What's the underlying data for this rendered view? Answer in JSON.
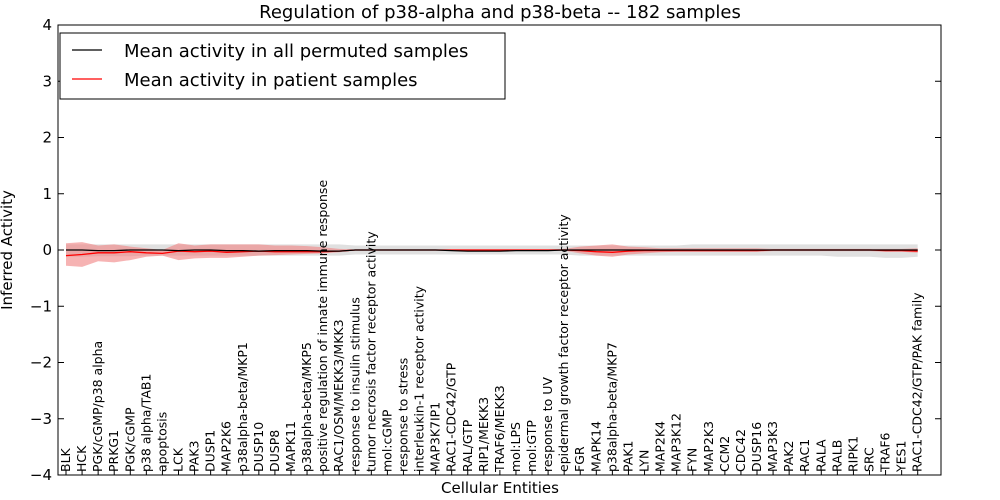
{
  "chart_data": {
    "type": "line",
    "title": "Regulation of p38-alpha and p38-beta -- 182 samples",
    "xlabel": "Cellular Entities",
    "ylabel": "Inferred Activity",
    "ylim": [
      -4,
      4
    ],
    "yticks": [
      4,
      3,
      2,
      1,
      0,
      -1,
      -2,
      -3,
      -4
    ],
    "ytick_labels": [
      "4",
      "3",
      "2",
      "1",
      "0",
      "−1",
      "−2",
      "−3",
      "−4"
    ],
    "legend_placement": "top-left",
    "categories": [
      "BLK",
      "HCK",
      "PGK/cGMP/p38 alpha",
      "PRKG1",
      "PGK/cGMP",
      "p38 alpha/TAB1",
      "apoptosis",
      "LCK",
      "PAK3",
      "DUSP1",
      "MAP2K6",
      "p38alpha-beta/MKP1",
      "DUSP10",
      "DUSP8",
      "MAPK11",
      "p38alpha-beta/MKP5",
      "positive regulation of innate immune response",
      "RAC1/OSM/MEKK3/MKK3",
      "response to insulin stimulus",
      "tumor necrosis factor receptor activity",
      "mol:cGMP",
      "response to stress",
      "interleukin-1 receptor activity",
      "MAP3K7IP1",
      "RAC1-CDC42/GTP",
      "RAL/GTP",
      "RIP1/MEKK3",
      "TRAF6/MEKK3",
      "mol:LPS",
      "mol:GTP",
      "response to UV",
      "epidermal growth factor receptor activity",
      "FGR",
      "MAPK14",
      "p38alpha-beta/MKP7",
      "PAK1",
      "LYN",
      "MAP2K4",
      "MAP3K12",
      "FYN",
      "MAP2K3",
      "CCM2",
      "CDC42",
      "DUSP16",
      "MAP3K3",
      "PAK2",
      "RAC1",
      "RALA",
      "RALB",
      "RIPK1",
      "SRC",
      "TRAF6",
      "YES1",
      "RAC1-CDC42/GTP/PAK family"
    ],
    "series": [
      {
        "name": "Mean activity in all permuted samples",
        "color": "#000000",
        "band_color": "#cccccc",
        "values": [
          0.0,
          0.0,
          -0.01,
          -0.01,
          0.0,
          0.0,
          0.0,
          -0.01,
          0.0,
          0.0,
          -0.01,
          -0.01,
          -0.02,
          -0.01,
          -0.01,
          -0.01,
          -0.02,
          -0.02,
          0.0,
          0.0,
          0.0,
          0.0,
          0.0,
          0.0,
          -0.01,
          -0.02,
          -0.02,
          -0.02,
          -0.01,
          -0.01,
          -0.01,
          0.0,
          0.0,
          0.0,
          0.0,
          0.0,
          0.0,
          0.0,
          0.0,
          0.0,
          0.0,
          0.0,
          0.0,
          0.0,
          0.0,
          0.0,
          0.0,
          0.0,
          0.0,
          0.0,
          0.0,
          0.0,
          0.0,
          0.0
        ],
        "lower": [
          -0.12,
          -0.12,
          -0.11,
          -0.11,
          -0.11,
          -0.1,
          -0.1,
          -0.1,
          -0.1,
          -0.1,
          -0.1,
          -0.1,
          -0.1,
          -0.1,
          -0.1,
          -0.1,
          -0.1,
          -0.1,
          -0.08,
          -0.08,
          -0.08,
          -0.08,
          -0.08,
          -0.08,
          -0.08,
          -0.08,
          -0.08,
          -0.08,
          -0.08,
          -0.08,
          -0.08,
          -0.08,
          -0.1,
          -0.1,
          -0.1,
          -0.1,
          -0.1,
          -0.1,
          -0.1,
          -0.1,
          -0.1,
          -0.1,
          -0.1,
          -0.1,
          -0.1,
          -0.1,
          -0.1,
          -0.1,
          -0.12,
          -0.12,
          -0.12,
          -0.14,
          -0.14,
          -0.12
        ],
        "upper": [
          0.1,
          0.1,
          0.1,
          0.1,
          0.1,
          0.1,
          0.1,
          0.1,
          0.1,
          0.1,
          0.1,
          0.1,
          0.1,
          0.1,
          0.1,
          0.1,
          0.1,
          0.1,
          0.08,
          0.08,
          0.08,
          0.08,
          0.08,
          0.08,
          0.08,
          0.08,
          0.08,
          0.08,
          0.08,
          0.08,
          0.08,
          0.08,
          0.08,
          0.08,
          0.08,
          0.08,
          0.08,
          0.08,
          0.08,
          0.1,
          0.1,
          0.1,
          0.1,
          0.1,
          0.1,
          0.1,
          0.1,
          0.1,
          0.1,
          0.1,
          0.1,
          0.1,
          0.1,
          0.1
        ]
      },
      {
        "name": "Mean activity in patient samples",
        "color": "#ff0000",
        "band_color": "#f08080",
        "values": [
          -0.1,
          -0.08,
          -0.05,
          -0.05,
          -0.03,
          -0.05,
          -0.06,
          -0.02,
          -0.03,
          -0.02,
          -0.04,
          -0.03,
          -0.02,
          -0.03,
          -0.03,
          -0.03,
          -0.03,
          -0.02,
          0.0,
          0.0,
          0.0,
          0.0,
          0.0,
          0.0,
          0.0,
          0.0,
          0.0,
          0.0,
          0.0,
          0.0,
          0.0,
          0.0,
          -0.01,
          -0.03,
          -0.04,
          -0.02,
          -0.01,
          -0.01,
          -0.01,
          -0.01,
          -0.01,
          -0.01,
          -0.01,
          -0.01,
          0.0,
          0.0,
          0.0,
          0.0,
          0.0,
          0.0,
          0.0,
          -0.01,
          -0.01,
          -0.02
        ],
        "lower": [
          -0.28,
          -0.3,
          -0.2,
          -0.22,
          -0.18,
          -0.12,
          -0.1,
          -0.18,
          -0.15,
          -0.14,
          -0.14,
          -0.12,
          -0.1,
          -0.09,
          -0.08,
          -0.07,
          -0.06,
          -0.04,
          -0.01,
          -0.01,
          -0.01,
          -0.01,
          -0.01,
          -0.01,
          -0.01,
          -0.01,
          -0.01,
          -0.01,
          -0.01,
          -0.01,
          -0.01,
          -0.01,
          -0.06,
          -0.1,
          -0.12,
          -0.08,
          -0.06,
          -0.04,
          -0.03,
          -0.03,
          -0.03,
          -0.03,
          -0.03,
          -0.03,
          -0.02,
          -0.02,
          -0.02,
          -0.02,
          -0.02,
          -0.02,
          -0.02,
          -0.03,
          -0.03,
          -0.05
        ],
        "upper": [
          0.12,
          0.14,
          0.08,
          0.1,
          0.06,
          0.03,
          0.0,
          0.12,
          0.08,
          0.1,
          0.1,
          0.1,
          0.1,
          0.08,
          0.08,
          0.07,
          0.05,
          0.02,
          0.01,
          0.01,
          0.01,
          0.01,
          0.01,
          0.01,
          0.01,
          0.01,
          0.01,
          0.01,
          0.01,
          0.01,
          0.01,
          0.02,
          0.06,
          0.08,
          0.1,
          0.06,
          0.05,
          0.03,
          0.03,
          0.03,
          0.03,
          0.03,
          0.03,
          0.03,
          0.02,
          0.02,
          0.02,
          0.02,
          0.02,
          0.02,
          0.02,
          0.02,
          0.02,
          0.03
        ]
      }
    ]
  }
}
